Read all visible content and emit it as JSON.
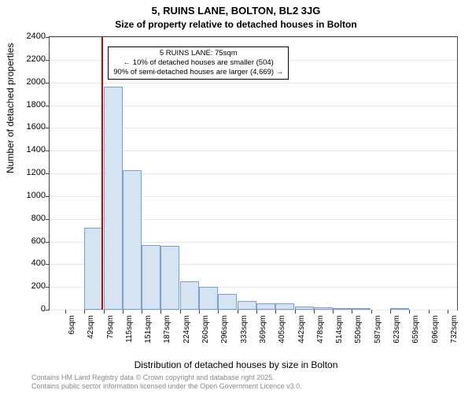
{
  "title_main": "5, RUINS LANE, BOLTON, BL2 3JG",
  "title_sub": "Size of property relative to detached houses in Bolton",
  "ylabel": "Number of detached properties",
  "xlabel": "Distribution of detached houses by size in Bolton",
  "footer_line1": "Contains HM Land Registry data © Crown copyright and database right 2025.",
  "footer_line2": "Contains public sector information licensed under the Open Government Licence v3.0.",
  "annotation_line1": "5 RUINS LANE: 75sqm",
  "annotation_line2": "← 10% of detached houses are smaller (504)",
  "annotation_line3": "90% of semi-detached houses are larger (4,669) →",
  "chart": {
    "type": "histogram",
    "background_color": "#ffffff",
    "grid_color": "#e6e6e6",
    "axis_color": "#444444",
    "bar_fill": "#d6e3f3",
    "bar_border": "#7ba0cc",
    "marker_color": "#cc0000",
    "marker_x": 75,
    "xlim": [
      -24,
      750
    ],
    "ylim": [
      0,
      2400
    ],
    "title_fontsize": 13,
    "label_fontsize": 12,
    "tick_fontsize": 11,
    "yticks": [
      0,
      200,
      400,
      600,
      800,
      1000,
      1200,
      1400,
      1600,
      1800,
      2000,
      2200,
      2400
    ],
    "xticks": [
      6,
      42,
      79,
      115,
      151,
      187,
      224,
      260,
      296,
      333,
      369,
      405,
      442,
      478,
      514,
      550,
      587,
      623,
      659,
      696,
      732
    ],
    "xtick_suffix": "sqm",
    "bin_starts": [
      6,
      42,
      79,
      115,
      151,
      187,
      224,
      260,
      296,
      333,
      369,
      405,
      442,
      478,
      514,
      550,
      587,
      623,
      659,
      696
    ],
    "bin_width": 36,
    "values": [
      0,
      720,
      1960,
      1230,
      570,
      560,
      250,
      200,
      140,
      75,
      55,
      55,
      30,
      20,
      15,
      10,
      0,
      10,
      0,
      0
    ]
  }
}
